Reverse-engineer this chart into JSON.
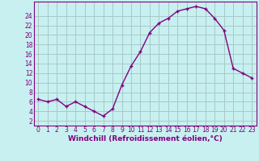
{
  "x": [
    0,
    1,
    2,
    3,
    4,
    5,
    6,
    7,
    8,
    9,
    10,
    11,
    12,
    13,
    14,
    15,
    16,
    17,
    18,
    19,
    20,
    21,
    22,
    23
  ],
  "y": [
    6.5,
    6.0,
    6.5,
    5.0,
    6.0,
    5.0,
    4.0,
    3.0,
    4.5,
    9.5,
    13.5,
    16.5,
    20.5,
    22.5,
    23.5,
    25.0,
    25.5,
    26.0,
    25.5,
    23.5,
    21.0,
    13.0,
    12.0,
    11.0
  ],
  "line_color": "#800080",
  "marker_color": "#800080",
  "bg_color": "#c8f0f0",
  "grid_color": "#a8c8c8",
  "axis_color": "#800080",
  "xlabel": "Windchill (Refroidissement éolien,°C)",
  "xlim": [
    -0.5,
    23.5
  ],
  "ylim": [
    1,
    27
  ],
  "yticks": [
    2,
    4,
    6,
    8,
    10,
    12,
    14,
    16,
    18,
    20,
    22,
    24
  ],
  "xticks": [
    0,
    1,
    2,
    3,
    4,
    5,
    6,
    7,
    8,
    9,
    10,
    11,
    12,
    13,
    14,
    15,
    16,
    17,
    18,
    19,
    20,
    21,
    22,
    23
  ],
  "tick_fontsize": 5.5,
  "xlabel_fontsize": 6.5
}
